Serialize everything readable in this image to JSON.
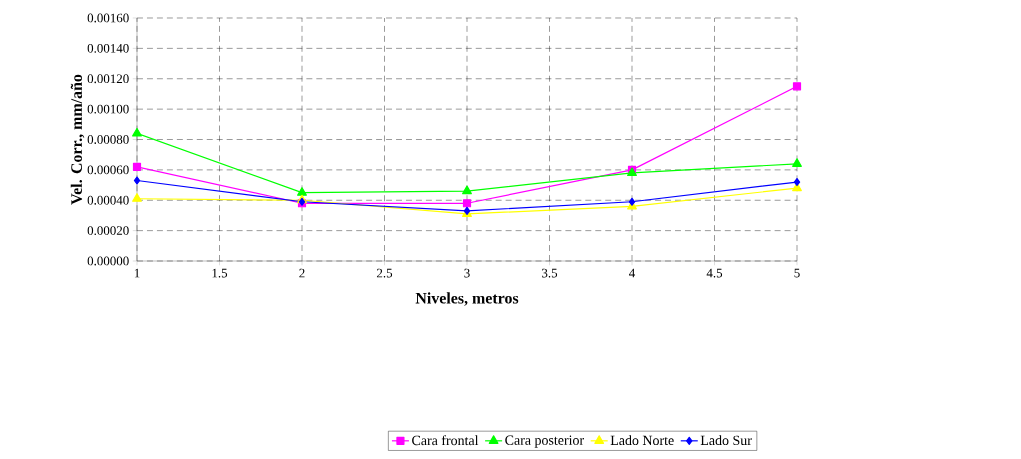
{
  "chart_data": {
    "type": "line",
    "xlabel": "Niveles, metros",
    "ylabel": "Vel. Corr., mm/año",
    "x": [
      1,
      2,
      3,
      4,
      5
    ],
    "series": [
      {
        "name": "Cara frontal",
        "color": "#ff00ff",
        "marker": "square",
        "values": [
          0.00062,
          0.00038,
          0.00038,
          0.0006,
          0.00115
        ]
      },
      {
        "name": "Cara posterior",
        "color": "#00ff00",
        "marker": "triangle",
        "values": [
          0.00084,
          0.00045,
          0.00046,
          0.00058,
          0.00064
        ]
      },
      {
        "name": "Lado Norte",
        "color": "#ffff00",
        "marker": "triangle",
        "values": [
          0.00041,
          0.0004,
          0.00031,
          0.00036,
          0.00048
        ]
      },
      {
        "name": "Lado Sur",
        "color": "#0000ff",
        "marker": "diamond",
        "values": [
          0.00053,
          0.00039,
          0.00033,
          0.00039,
          0.00052
        ]
      }
    ],
    "xlim": [
      1,
      5
    ],
    "xticks": [
      1,
      1.5,
      2,
      2.5,
      3,
      3.5,
      4,
      4.5,
      5
    ],
    "ylim": [
      0,
      0.0016
    ],
    "yticks": [
      {
        "value": 0,
        "label": "0.00000"
      },
      {
        "value": 0.0002,
        "label": "0.00020"
      },
      {
        "value": 0.0004,
        "label": "0.00040"
      },
      {
        "value": 0.0006,
        "label": "0.00060"
      },
      {
        "value": 0.0008,
        "label": "0.00080"
      },
      {
        "value": 0.001,
        "label": "0.00100"
      },
      {
        "value": 0.0012,
        "label": "0.00120"
      },
      {
        "value": 0.0014,
        "label": "0.00140"
      },
      {
        "value": 0.0016,
        "label": "0.00160"
      }
    ],
    "grid": true,
    "legend": "bottom",
    "line_style": "solid"
  }
}
